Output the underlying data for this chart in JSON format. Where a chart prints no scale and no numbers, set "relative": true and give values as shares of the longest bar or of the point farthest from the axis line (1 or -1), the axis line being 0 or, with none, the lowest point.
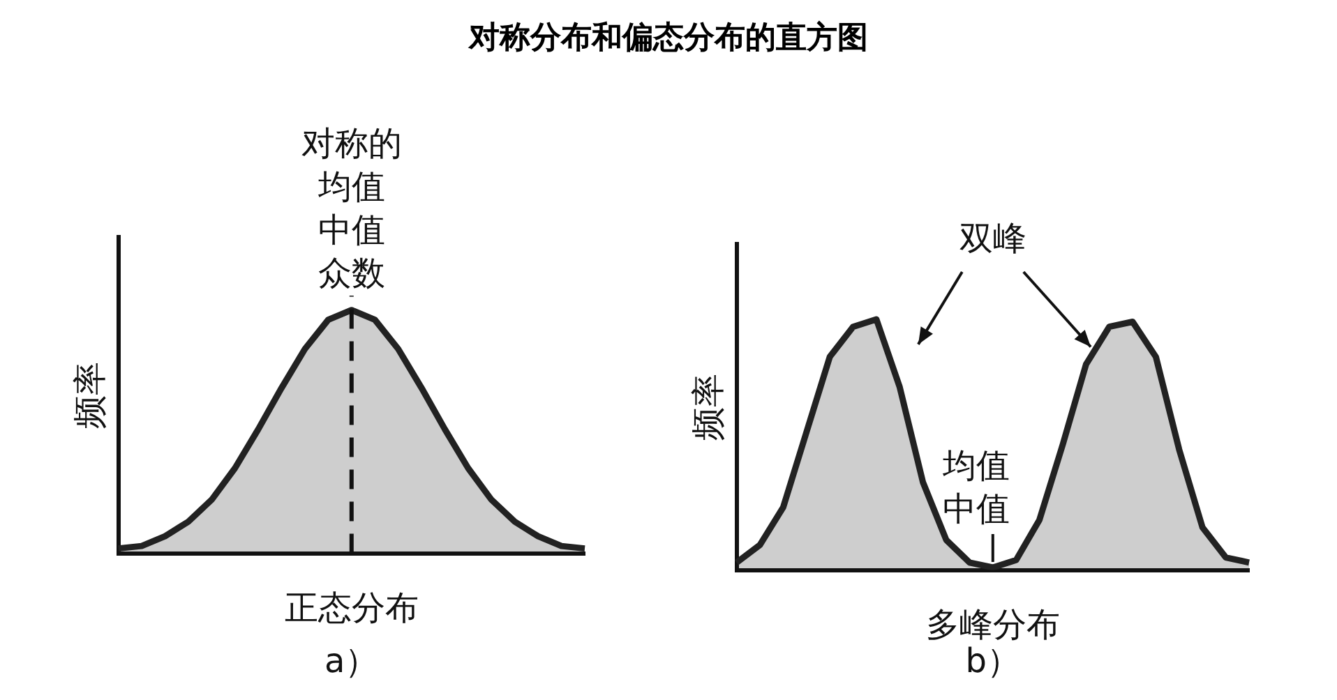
{
  "chart_data": [
    {
      "type": "area",
      "title": "对称分布和偏态分布的直方图",
      "xlabel": "正态分布",
      "ylabel": "频率",
      "relative": true,
      "categories": [
        null,
        null,
        null,
        null,
        null,
        null,
        null,
        null,
        null,
        null,
        null,
        null,
        null,
        null,
        null,
        null,
        null,
        null,
        null,
        null,
        null
      ],
      "series": [
        {
          "color": "#222222",
          "values": [
            0.02,
            0.03,
            0.07,
            0.13,
            0.22,
            0.35,
            0.51,
            0.68,
            0.84,
            0.96,
            1,
            0.96,
            0.84,
            0.68,
            0.51,
            0.35,
            0.22,
            0.13,
            0.07,
            0.03,
            0.02
          ]
        }
      ],
      "annotations": [
        "对称的均值中值众数",
        "a）"
      ]
    },
    {
      "type": "area",
      "xlabel": "多峰分布",
      "ylabel": "频率",
      "relative": true,
      "categories": [
        null,
        null,
        null,
        null,
        null,
        null,
        null,
        null,
        null,
        null,
        null,
        null,
        null,
        null,
        null,
        null,
        null,
        null,
        null,
        null,
        null,
        null,
        null
      ],
      "series": [
        {
          "color": "#222222",
          "values": [
            0.03,
            0.1,
            0.25,
            0.55,
            0.85,
            0.97,
            1,
            0.73,
            0.35,
            0.12,
            0.03,
            0.01,
            0.04,
            0.2,
            0.5,
            0.82,
            0.97,
            0.99,
            0.85,
            0.48,
            0.17,
            0.05,
            0.03
          ]
        }
      ],
      "annotations": [
        "双峰",
        "均值中值",
        "b）"
      ]
    }
  ]
}
